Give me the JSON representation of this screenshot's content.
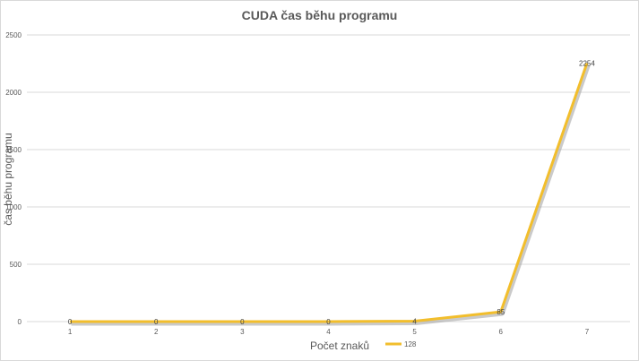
{
  "chart_data": {
    "type": "line",
    "title": "CUDA čas běhu programu",
    "xlabel": "Počet znaků",
    "ylabel": "čas běhu programu",
    "categories": [
      "1",
      "2",
      "3",
      "4",
      "5",
      "6",
      "7"
    ],
    "series": [
      {
        "name": "128",
        "values": [
          0,
          0,
          0,
          0,
          4,
          85,
          2254
        ],
        "color": "#f2be2c",
        "shadow": "#a6a6a6"
      }
    ],
    "ylim": [
      0,
      2500
    ],
    "yticks": [
      0,
      500,
      1000,
      1500,
      2000,
      2500
    ],
    "grid": true,
    "legend": "bottom",
    "data_labels": [
      "0",
      "0",
      "0",
      "0",
      "4",
      "85",
      "2254"
    ]
  }
}
